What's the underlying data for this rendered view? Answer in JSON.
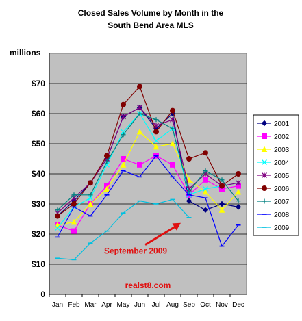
{
  "chart_data": {
    "type": "line",
    "title_line1": "Closed Sales Volume by Month in the",
    "title_line2": "South Bend Area MLS",
    "ylabel": "millions",
    "ylim": [
      0,
      80
    ],
    "yticks": [
      "0",
      "$10",
      "$20",
      "$30",
      "$40",
      "$50",
      "$60",
      "$70"
    ],
    "ytick_values": [
      0,
      10,
      20,
      30,
      40,
      50,
      60,
      70
    ],
    "categories": [
      "Jan",
      "Feb",
      "Mar",
      "Apr",
      "May",
      "Jun",
      "Jul",
      "Aug",
      "Sep",
      "Oct",
      "Nov",
      "Dec"
    ],
    "grid": true,
    "legend_position": "right",
    "series": [
      {
        "name": "2001",
        "color": "#000080",
        "marker": "diamond",
        "values": [
          26,
          31,
          37,
          45,
          59,
          62,
          55,
          60,
          31,
          28,
          30,
          29
        ]
      },
      {
        "name": "2002",
        "color": "#ff00ff",
        "marker": "square",
        "values": [
          23,
          21,
          30,
          36,
          45,
          43,
          46,
          43,
          33,
          38,
          35,
          36
        ]
      },
      {
        "name": "2003",
        "color": "#ffff00",
        "marker": "triangle",
        "values": [
          23,
          24,
          30,
          35,
          43,
          54,
          49,
          50,
          38,
          34,
          28,
          34
        ]
      },
      {
        "name": "2004",
        "color": "#00ffff",
        "marker": "x",
        "values": [
          22,
          29,
          32,
          43,
          54,
          60,
          51,
          55,
          33,
          35,
          36,
          37
        ]
      },
      {
        "name": "2005",
        "color": "#800080",
        "marker": "star",
        "values": [
          27,
          32,
          37,
          45,
          59,
          62,
          56,
          58,
          35,
          40,
          36,
          37
        ]
      },
      {
        "name": "2006",
        "color": "#800000",
        "marker": "circle",
        "values": [
          26,
          30,
          37,
          46,
          63,
          69,
          54,
          61,
          45,
          47,
          36,
          40
        ]
      },
      {
        "name": "2007",
        "color": "#008080",
        "marker": "plus",
        "values": [
          28,
          33,
          33,
          44,
          53,
          60,
          58,
          55,
          34,
          41,
          38,
          31
        ]
      },
      {
        "name": "2008",
        "color": "#0000ff",
        "marker": "dash",
        "values": [
          19,
          29,
          26,
          33,
          41,
          39,
          46,
          39,
          33,
          32,
          16,
          23
        ]
      },
      {
        "name": "2009",
        "color": "#00c0e0",
        "marker": "dash",
        "values": [
          12,
          11.5,
          17,
          21,
          27,
          31,
          30,
          31.5,
          25.5,
          null,
          null,
          null
        ]
      }
    ],
    "annotation": "September 2009",
    "watermark": "realst8.com"
  }
}
